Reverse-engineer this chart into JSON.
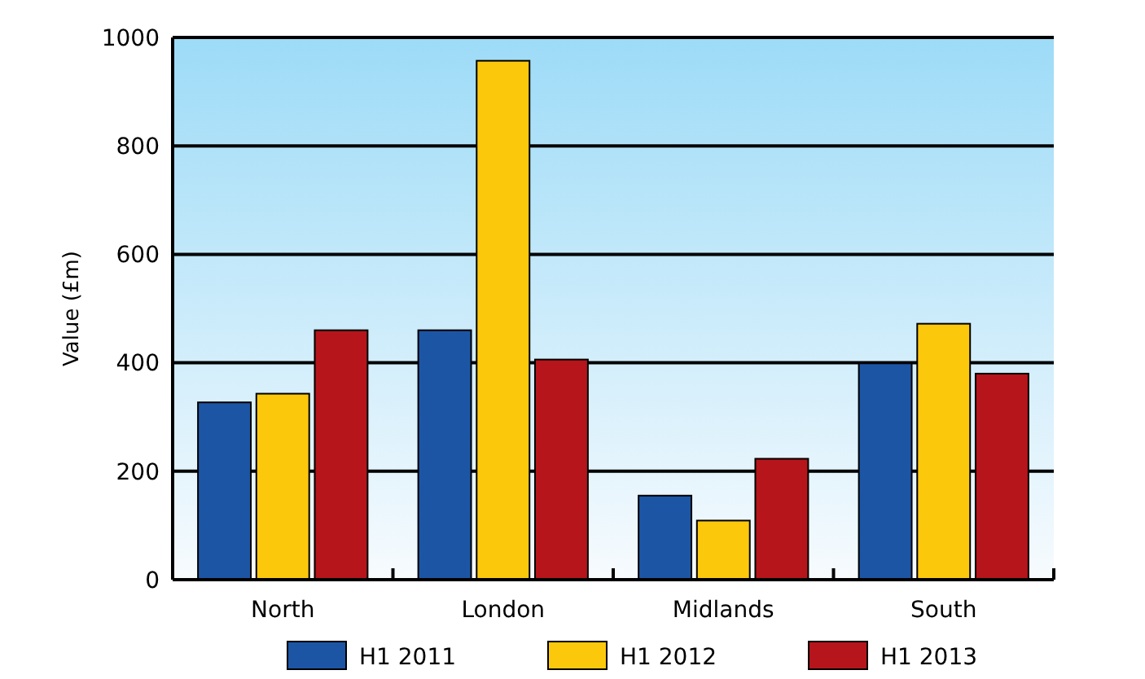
{
  "chart_data": {
    "type": "bar",
    "ylabel": "Value (£m)",
    "categories": [
      "North",
      "London",
      "Midlands",
      "South"
    ],
    "series": [
      {
        "name": "H1 2011",
        "color": "#1d55a5",
        "values": [
          327,
          460,
          155,
          399
        ]
      },
      {
        "name": "H1 2012",
        "color": "#fcc80c",
        "values": [
          343,
          957,
          109,
          472
        ]
      },
      {
        "name": "H1 2013",
        "color": "#b5151b",
        "values": [
          460,
          406,
          223,
          380
        ]
      }
    ],
    "ylim": [
      0,
      1000
    ],
    "yticks": [
      0,
      200,
      400,
      600,
      800,
      1000
    ],
    "grid": "y",
    "legend": "bottom"
  }
}
